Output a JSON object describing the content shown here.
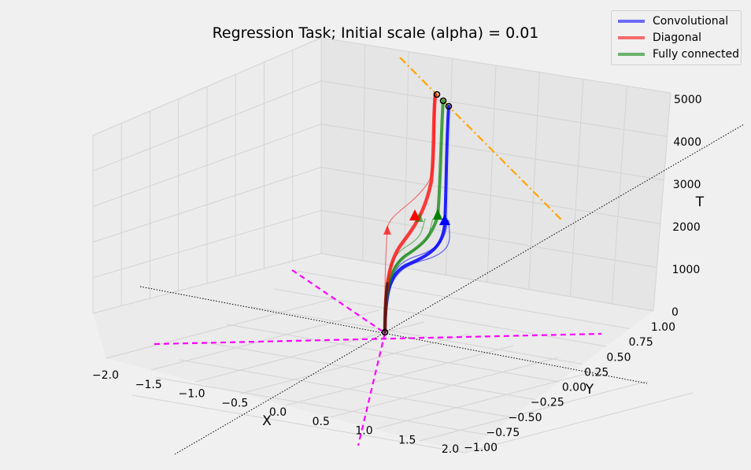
{
  "chart_data": {
    "type": "line",
    "title": "Regression Task; Initial scale (alpha) = 0.01",
    "xlabel": "X",
    "ylabel": "Y",
    "zlabel": "T",
    "xlim": [
      -2.0,
      2.0
    ],
    "ylim": [
      -1.0,
      1.0
    ],
    "zlim": [
      0,
      5000
    ],
    "x_ticks": [
      "−2.0",
      "−1.5",
      "−1.0",
      "−0.5",
      "0.0",
      "0.5",
      "1.0",
      "1.5",
      "2.0"
    ],
    "y_ticks": [
      "−1.00",
      "−0.75",
      "−0.50",
      "−0.25",
      "0.00",
      "0.25",
      "0.50",
      "0.75",
      "1.00"
    ],
    "z_ticks": [
      "0",
      "1000",
      "2000",
      "3000",
      "4000",
      "5000"
    ],
    "grid": true,
    "legend_position": "top-right",
    "series": [
      {
        "name": "Convolutional",
        "color": "#0000ff",
        "points": [
          [
            0,
            0,
            0
          ],
          [
            0.05,
            0.02,
            500
          ],
          [
            0.3,
            0.15,
            1000
          ],
          [
            0.5,
            0.3,
            1500
          ],
          [
            0.55,
            0.35,
            2000
          ],
          [
            0.56,
            0.36,
            3000
          ],
          [
            0.57,
            0.37,
            4000
          ],
          [
            0.58,
            0.38,
            5000
          ]
        ]
      },
      {
        "name": "Diagonal",
        "color": "#ff0000",
        "points": [
          [
            0,
            0,
            0
          ],
          [
            0.02,
            0.02,
            500
          ],
          [
            0.1,
            0.1,
            1000
          ],
          [
            0.2,
            0.25,
            1500
          ],
          [
            0.28,
            0.35,
            2000
          ],
          [
            0.31,
            0.38,
            3000
          ],
          [
            0.33,
            0.4,
            4000
          ],
          [
            0.34,
            0.41,
            5000
          ]
        ]
      },
      {
        "name": "Fully connected",
        "color": "#008000",
        "points": [
          [
            0,
            0,
            0
          ],
          [
            0.03,
            0.02,
            500
          ],
          [
            0.2,
            0.12,
            1000
          ],
          [
            0.38,
            0.25,
            1500
          ],
          [
            0.45,
            0.32,
            2000
          ],
          [
            0.46,
            0.33,
            3000
          ],
          [
            0.47,
            0.34,
            4000
          ],
          [
            0.48,
            0.35,
            5000
          ]
        ]
      }
    ]
  },
  "legend": {
    "items": [
      {
        "label": "Convolutional",
        "color": "#0000ff"
      },
      {
        "label": "Diagonal",
        "color": "#ff0000"
      },
      {
        "label": "Fully connected",
        "color": "#008000"
      }
    ]
  },
  "colors": {
    "background": "#f0f0f0",
    "pane": "#e8e8e8",
    "grid": "#d3d3d3",
    "magenta": "#ff00ff",
    "orange": "#ffa500"
  }
}
